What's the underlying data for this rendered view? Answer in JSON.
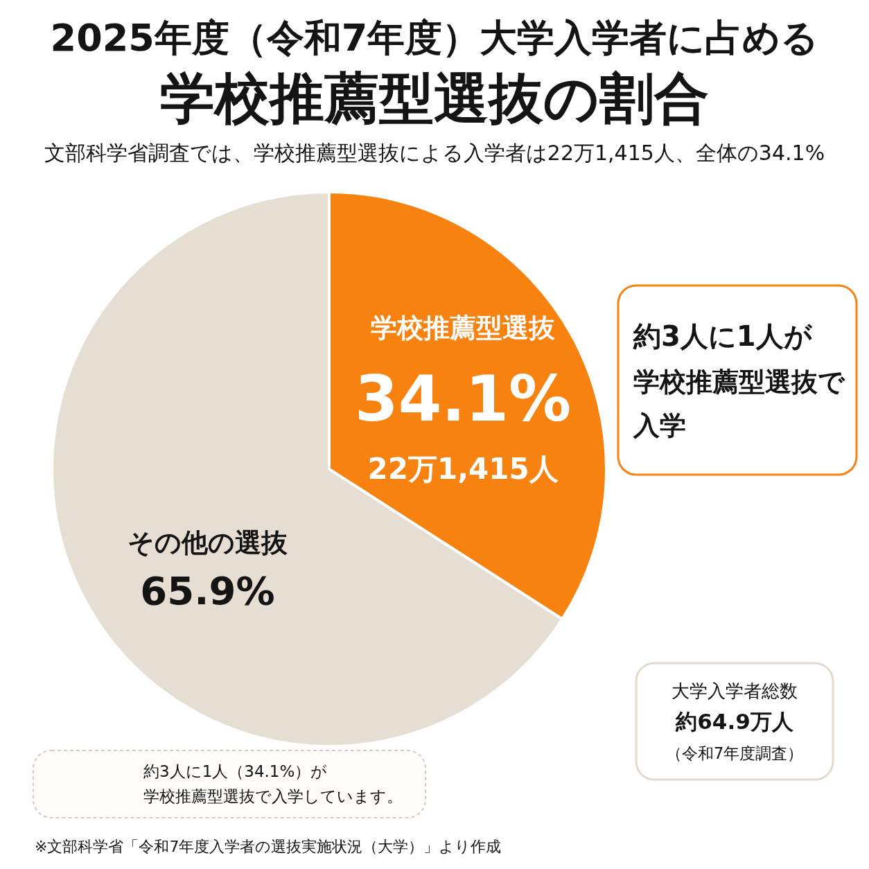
{
  "chart_data": {
    "type": "pie",
    "title": "2025年度（令和7年度）大学入学者に占める学校推薦型選抜の割合",
    "subtitle": "文部科学省調査では、学校推薦型選抜による入学者は22万1,415人、全体の34.1%",
    "categories": [
      "学校推薦型選抜",
      "その他の選抜"
    ],
    "values": [
      34.1,
      65.9
    ],
    "colors": [
      "#f7820f",
      "#e6ded3"
    ],
    "value_labels": [
      "34.1%",
      "65.9%"
    ],
    "annotations": [
      "22万1,415人",
      "約3人に1人が",
      "学校推薦型選抜で",
      "入学",
      "大学入学者総数",
      "約64.9万人",
      "（令和7年度調査）",
      "約3人に1人（34.1%）が",
      "学校推薦型選抜で入学しています。",
      "※文部科学省「令和7年度入学者の選抜実施状況（大学）」より作成"
    ]
  }
}
